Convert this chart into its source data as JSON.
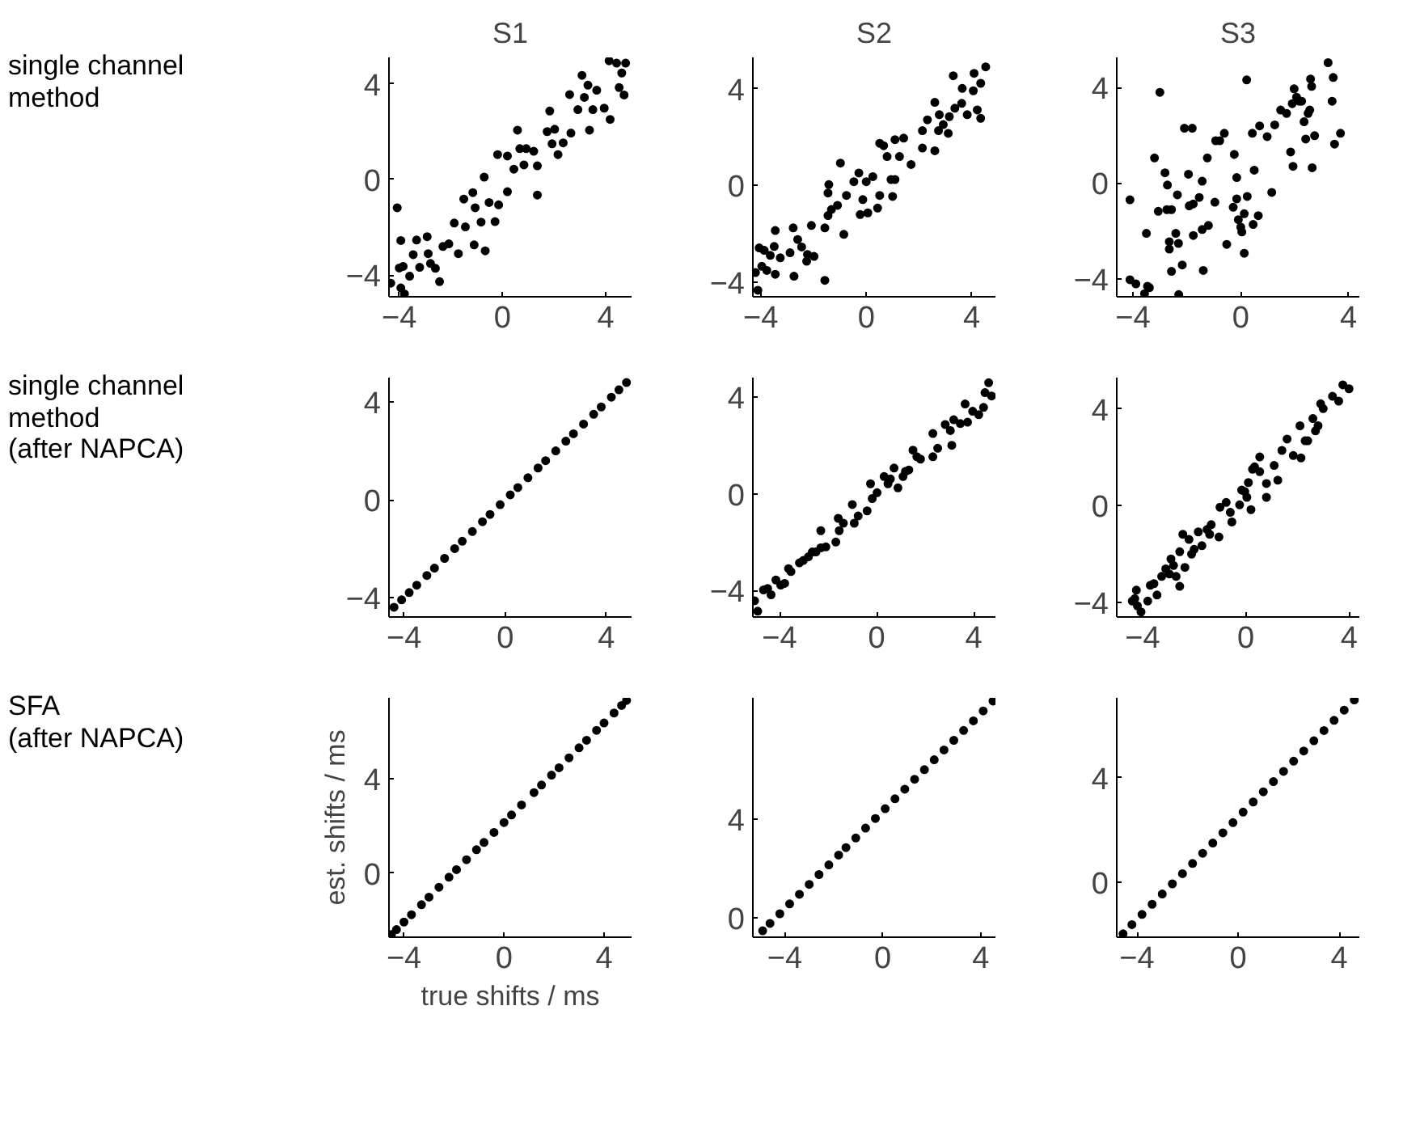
{
  "chart_data": [
    {
      "type": "scatter",
      "title": "S1",
      "annotations": [
        "single channel\nmethod"
      ],
      "color": "#000000",
      "marker": "circle",
      "xlim": [
        -4.4,
        5.0
      ],
      "ylim": [
        -4.9,
        5.1
      ],
      "xticks": [
        -4,
        0,
        4
      ],
      "yticks": [
        -4,
        0,
        4
      ],
      "x": [
        -4.08,
        -4.33,
        -3.94,
        -3.8,
        -4.0,
        -3.85,
        -3.94,
        -3.6,
        -3.46,
        -3.33,
        -3.21,
        -2.92,
        -2.88,
        -2.79,
        -2.6,
        -2.44,
        -2.31,
        -2.08,
        -1.87,
        -1.71,
        -1.5,
        -1.44,
        -1.15,
        -1.1,
        -1.06,
        -0.83,
        -0.71,
        -0.67,
        -0.52,
        -0.29,
        -0.19,
        -0.15,
        0.19,
        0.19,
        0.44,
        0.58,
        0.67,
        0.83,
        0.92,
        1.21,
        1.35,
        1.35,
        1.73,
        1.83,
        1.92,
        2.02,
        2.15,
        2.35,
        2.6,
        2.65,
        2.92,
        3.08,
        3.17,
        3.31,
        3.37,
        3.5,
        3.65,
        3.94,
        4.13,
        4.17,
        4.42,
        4.52,
        4.62,
        4.71,
        4.77
      ],
      "values": [
        -1.18,
        -4.33,
        -4.53,
        -4.78,
        -3.7,
        -3.63,
        -2.55,
        -4.04,
        -3.14,
        -2.53,
        -3.67,
        -2.39,
        -3.1,
        -3.51,
        -3.71,
        -4.27,
        -2.8,
        -2.69,
        -1.82,
        -3.1,
        -0.82,
        -1.98,
        -0.55,
        -2.73,
        -1.18,
        -1.78,
        0.1,
        -2.98,
        -0.96,
        -1.76,
        1.04,
        -1.06,
        -0.51,
        0.98,
        0.43,
        2.06,
        1.29,
        0.61,
        1.29,
        1.18,
        -0.65,
        0.57,
        2.0,
        2.86,
        1.49,
        2.1,
        1.04,
        1.53,
        3.55,
        1.94,
        2.92,
        4.35,
        3.43,
        3.94,
        2.06,
        2.92,
        3.73,
        2.98,
        4.96,
        2.51,
        4.86,
        3.84,
        4.45,
        3.53,
        4.86
      ]
    },
    {
      "type": "scatter",
      "title": "S2",
      "color": "#000000",
      "marker": "circle",
      "xlim": [
        -4.3,
        4.9
      ],
      "ylim": [
        -4.6,
        5.3
      ],
      "xticks": [
        -4,
        0,
        4
      ],
      "yticks": [
        -4,
        0,
        4
      ],
      "x": [
        -4.2,
        -4.11,
        -4.06,
        -3.96,
        -3.87,
        -3.77,
        -3.64,
        -3.49,
        -3.45,
        -3.45,
        -3.26,
        -2.89,
        -2.77,
        -2.74,
        -2.6,
        -2.45,
        -2.26,
        -2.23,
        -2.08,
        -1.98,
        -1.57,
        -1.57,
        -1.45,
        -1.42,
        -1.45,
        -1.32,
        -1.09,
        -0.98,
        -0.85,
        -0.75,
        -0.47,
        -0.28,
        -0.23,
        -0.13,
        0.0,
        0.06,
        0.25,
        0.43,
        0.51,
        0.51,
        0.66,
        0.79,
        0.94,
        1.0,
        1.09,
        1.09,
        1.26,
        1.42,
        1.7,
        2.13,
        2.13,
        2.32,
        2.6,
        2.6,
        2.74,
        2.77,
        2.92,
        3.11,
        3.15,
        3.3,
        3.36,
        3.62,
        3.64,
        3.83,
        4.06,
        4.09,
        4.21,
        4.34,
        4.34,
        4.53
      ],
      "values": [
        -3.6,
        -4.33,
        -2.58,
        -3.34,
        -2.68,
        -3.51,
        -2.89,
        -2.52,
        -3.67,
        -1.86,
        -2.99,
        -2.78,
        -1.75,
        -3.75,
        -2.23,
        -2.54,
        -3.13,
        -2.85,
        -1.65,
        -2.93,
        -1.75,
        -3.92,
        -0.31,
        0.04,
        -1.24,
        -0.99,
        -0.82,
        0.93,
        -2.02,
        -0.41,
        0.16,
        0.52,
        -1.2,
        -0.58,
        0.16,
        -1.13,
        0.37,
        -0.93,
        -0.41,
        1.75,
        1.65,
        1.2,
        0.25,
        -0.45,
        0.25,
        1.9,
        1.2,
        1.96,
        0.87,
        1.55,
        2.27,
        2.72,
        1.44,
        3.44,
        2.27,
        2.93,
        2.52,
        2.16,
        2.85,
        4.54,
        3.2,
        3.4,
        4.02,
        2.93,
        3.92,
        4.64,
        3.13,
        2.78,
        4.23,
        4.91
      ]
    },
    {
      "type": "scatter",
      "title": "S3",
      "color": "#000000",
      "marker": "circle",
      "xlim": [
        -4.6,
        4.4
      ],
      "ylim": [
        -4.75,
        5.25
      ],
      "xticks": [
        -4,
        0,
        4
      ],
      "yticks": [
        -4,
        0,
        4
      ],
      "x": [
        -4.11,
        -4.11,
        -3.89,
        -3.57,
        -3.46,
        -3.39,
        -3.5,
        -3.2,
        -3.06,
        -3.0,
        -2.81,
        -2.74,
        -2.72,
        -2.65,
        -2.65,
        -2.57,
        -2.57,
        -2.41,
        -2.35,
        -2.31,
        -2.3,
        -2.17,
        -2.09,
        -1.94,
        -1.91,
        -1.8,
        -1.76,
        -1.76,
        -1.54,
        -1.43,
        -1.43,
        -1.39,
        -1.24,
        -1.2,
        -0.96,
        -0.93,
        -0.78,
        -0.61,
        -0.52,
        -0.28,
        -0.24,
        -0.15,
        -0.15,
        -0.09,
        0.0,
        0.04,
        0.13,
        0.13,
        0.22,
        0.24,
        0.43,
        0.46,
        0.5,
        0.65,
        0.7,
        0.98,
        1.15,
        1.26,
        1.48,
        1.7,
        1.85,
        1.94,
        1.91,
        1.98,
        2.07,
        2.17,
        2.26,
        2.35,
        2.41,
        2.5,
        2.56,
        2.59,
        2.63,
        2.65,
        2.74,
        3.24,
        3.39,
        3.43,
        3.48,
        3.7
      ],
      "values": [
        -0.7,
        -4.04,
        -4.21,
        -4.62,
        -4.31,
        -4.37,
        -2.1,
        1.05,
        -1.18,
        3.79,
        0.43,
        -1.11,
        -0.08,
        -2.45,
        -2.76,
        -1.11,
        -3.69,
        -2.1,
        -0.49,
        -2.52,
        -4.66,
        -3.42,
        2.29,
        0.37,
        -0.95,
        2.29,
        -2.19,
        -0.87,
        -0.6,
        0.08,
        -1.94,
        -3.65,
        1.05,
        -1.77,
        -0.8,
        1.77,
        1.77,
        2.08,
        -2.56,
        -1.01,
        1.2,
        0.23,
        -0.66,
        -1.53,
        -1.84,
        -2.04,
        -2.93,
        -1.28,
        4.31,
        -0.56,
        2.08,
        -1.73,
        0.54,
        -1.36,
        2.39,
        1.94,
        -0.39,
        2.43,
        3.05,
        2.91,
        1.3,
        0.7,
        3.32,
        3.94,
        3.59,
        3.42,
        3.42,
        2.56,
        1.84,
        2.91,
        3.05,
        4.35,
        4.04,
        0.64,
        1.98,
        5.03,
        3.42,
        4.41,
        1.63,
        2.08
      ]
    },
    {
      "type": "scatter",
      "annotations": [
        "single channel\nmethod\n(after NAPCA)"
      ],
      "color": "#000000",
      "marker": "circle",
      "xlim": [
        -4.6,
        5.0
      ],
      "ylim": [
        -4.8,
        5.0
      ],
      "xticks": [
        -4,
        0,
        4
      ],
      "yticks": [
        -4,
        0,
        4
      ],
      "x": [
        -4.4,
        -4.1,
        -3.8,
        -3.5,
        -3.1,
        -2.8,
        -2.4,
        -2.0,
        -1.7,
        -1.3,
        -0.9,
        -0.6,
        -0.2,
        0.2,
        0.5,
        0.9,
        1.3,
        1.6,
        2.0,
        2.4,
        2.7,
        3.1,
        3.5,
        3.8,
        4.2,
        4.5,
        4.8
      ],
      "values": [
        -4.4,
        -4.1,
        -3.8,
        -3.5,
        -3.1,
        -2.8,
        -2.4,
        -2.0,
        -1.7,
        -1.3,
        -0.9,
        -0.6,
        -0.2,
        0.2,
        0.5,
        0.9,
        1.3,
        1.6,
        2.0,
        2.4,
        2.7,
        3.1,
        3.5,
        3.8,
        4.2,
        4.5,
        4.8
      ]
    },
    {
      "type": "scatter",
      "color": "#000000",
      "marker": "circle",
      "xlim": [
        -5.1,
        4.9
      ],
      "ylim": [
        -5.1,
        4.8
      ],
      "xticks": [
        -4,
        0,
        4
      ],
      "yticks": [
        -4,
        0,
        4
      ],
      "x": [
        -5.03,
        -4.9,
        -4.66,
        -4.49,
        -4.35,
        -4.15,
        -3.95,
        -3.79,
        -3.63,
        -3.53,
        -3.18,
        -3.02,
        -2.81,
        -2.65,
        -2.5,
        -2.3,
        -2.09,
        -2.3,
        -1.68,
        -1.58,
        -1.54,
        -1.37,
        -1.0,
        -0.92,
        -0.76,
        -0.39,
        -0.25,
        -0.18,
        0.02,
        0.31,
        0.47,
        0.57,
        0.72,
        0.88,
        1.09,
        1.19,
        1.33,
        1.5,
        1.66,
        1.81,
        2.32,
        2.32,
        2.52,
        2.83,
        3.04,
        3.1,
        3.18,
        3.45,
        3.65,
        3.75,
        3.96,
        4.21,
        4.41,
        4.47,
        4.62,
        4.74
      ],
      "values": [
        -4.43,
        -4.86,
        -3.98,
        -3.92,
        -4.18,
        -3.57,
        -3.78,
        -3.71,
        -3.1,
        -3.22,
        -2.86,
        -2.76,
        -2.61,
        -2.41,
        -2.41,
        -2.24,
        -2.2,
        -1.53,
        -2.0,
        -1.02,
        -1.53,
        -1.22,
        -0.45,
        -1.22,
        -0.92,
        -0.71,
        0.41,
        -0.2,
        0.04,
        0.71,
        0.41,
        0.61,
        1.06,
        0.24,
        0.71,
        0.92,
        0.98,
        1.8,
        1.53,
        1.43,
        2.49,
        1.53,
        1.88,
        2.86,
        2.61,
        2.0,
        3.06,
        2.9,
        3.71,
        2.96,
        3.41,
        3.27,
        3.57,
        4.18,
        4.59,
        4.04
      ]
    },
    {
      "type": "scatter",
      "color": "#000000",
      "marker": "circle",
      "xlim": [
        -5.0,
        4.4
      ],
      "ylim": [
        -4.6,
        5.3
      ],
      "xticks": [
        -4,
        0,
        4
      ],
      "yticks": [
        -4,
        0,
        4
      ],
      "x": [
        -4.4,
        -4.3,
        -4.24,
        -4.2,
        -4.06,
        -3.8,
        -3.7,
        -3.56,
        -3.44,
        -3.26,
        -3.1,
        -2.96,
        -2.9,
        -2.8,
        -2.7,
        -2.56,
        -2.56,
        -2.44,
        -2.36,
        -2.2,
        -2.1,
        -2.0,
        -1.84,
        -1.7,
        -1.5,
        -1.4,
        -1.34,
        -1.04,
        -1.0,
        -0.76,
        -0.6,
        -0.54,
        -0.24,
        -0.16,
        -0.04,
        0.04,
        0.1,
        0.2,
        0.26,
        0.34,
        0.54,
        0.54,
        0.8,
        0.8,
        1.1,
        1.24,
        1.4,
        1.6,
        1.84,
        2.1,
        2.14,
        2.3,
        2.4,
        2.6,
        2.7,
        2.8,
        2.9,
        3.0,
        3.36,
        3.6,
        3.76,
        4.0
      ],
      "values": [
        -3.94,
        -3.84,
        -3.49,
        -4.14,
        -4.39,
        -3.94,
        -3.29,
        -3.22,
        -3.69,
        -2.92,
        -2.61,
        -2.82,
        -2.2,
        -2.47,
        -2.92,
        -3.33,
        -1.9,
        -1.18,
        -2.55,
        -1.39,
        -2.0,
        -1.8,
        -1.08,
        -1.65,
        -0.98,
        -1.18,
        -0.78,
        -1.29,
        -0.06,
        0.14,
        -0.27,
        -0.67,
        0.04,
        0.65,
        0.59,
        0.35,
        0.96,
        -0.16,
        1.51,
        1.61,
        2.02,
        1.41,
        0.92,
        0.35,
        1.67,
        1.06,
        2.29,
        2.76,
        2.08,
        3.31,
        1.98,
        2.69,
        2.69,
        3.61,
        3.1,
        3.31,
        4.22,
        4.02,
        4.53,
        4.33,
        5.0,
        4.84
      ]
    },
    {
      "type": "scatter",
      "annotations": [
        "SFA\n(after NAPCA)"
      ],
      "xlabel": "true shifts / ms",
      "ylabel": "est. shifts / ms",
      "color": "#000000",
      "marker": "circle",
      "xlim": [
        -4.6,
        5.1
      ],
      "ylim": [
        -2.7,
        7.4
      ],
      "xticks": [
        -4,
        0,
        4
      ],
      "yticks": [
        0,
        4
      ],
      "x": [
        -4.5,
        -4.3,
        -4.0,
        -3.7,
        -3.3,
        -3.0,
        -2.6,
        -2.2,
        -1.9,
        -1.5,
        -1.1,
        -0.8,
        -0.4,
        0,
        0.3,
        0.7,
        1.2,
        1.5,
        1.9,
        2.2,
        2.6,
        3.0,
        3.3,
        3.7,
        4.0,
        4.4,
        4.7,
        4.9
      ],
      "values": [
        -2.59,
        -2.38,
        -2.06,
        -1.75,
        -1.33,
        -1.01,
        -0.59,
        -0.17,
        0.15,
        0.57,
        0.99,
        1.3,
        1.72,
        2.14,
        2.46,
        2.88,
        3.4,
        3.72,
        4.14,
        4.45,
        4.87,
        5.29,
        5.61,
        6.03,
        6.34,
        6.76,
        7.08,
        7.29
      ]
    },
    {
      "type": "scatter",
      "color": "#000000",
      "marker": "circle",
      "xlim": [
        -5.3,
        4.6
      ],
      "ylim": [
        -0.8,
        8.9
      ],
      "xticks": [
        -4,
        0,
        4
      ],
      "yticks": [
        0,
        4
      ],
      "x": [
        -4.9,
        -4.6,
        -4.2,
        -3.8,
        -3.4,
        -3.0,
        -2.6,
        -2.2,
        -1.8,
        -1.5,
        -1.1,
        -0.7,
        -0.3,
        0.1,
        0.5,
        0.9,
        1.3,
        1.7,
        2.1,
        2.5,
        2.9,
        3.3,
        3.7,
        4.1,
        4.5
      ],
      "values": [
        -0.54,
        -0.24,
        0.15,
        0.55,
        0.94,
        1.34,
        1.74,
        2.13,
        2.53,
        2.83,
        3.22,
        3.62,
        4.01,
        4.41,
        4.81,
        5.2,
        5.6,
        5.99,
        6.39,
        6.79,
        7.18,
        7.58,
        7.97,
        8.37,
        8.77
      ]
    },
    {
      "type": "scatter",
      "color": "#000000",
      "marker": "circle",
      "xlim": [
        -4.8,
        4.8
      ],
      "ylim": [
        -2.1,
        7.05
      ],
      "xticks": [
        -4,
        0,
        4
      ],
      "yticks": [
        0,
        4
      ],
      "x": [
        -4.55,
        -4.2,
        -3.8,
        -3.4,
        -3.0,
        -2.6,
        -2.2,
        -1.8,
        -1.4,
        -1.0,
        -0.6,
        -0.2,
        0.2,
        0.6,
        1.0,
        1.4,
        1.8,
        2.2,
        2.6,
        3.0,
        3.4,
        3.8,
        4.2,
        4.6
      ],
      "values": [
        -1.97,
        -1.62,
        -1.23,
        -0.84,
        -0.45,
        -0.06,
        0.33,
        0.72,
        1.11,
        1.5,
        1.89,
        2.28,
        2.68,
        3.07,
        3.46,
        3.85,
        4.24,
        4.63,
        5.02,
        5.41,
        5.8,
        6.19,
        6.58,
        6.97
      ]
    }
  ]
}
